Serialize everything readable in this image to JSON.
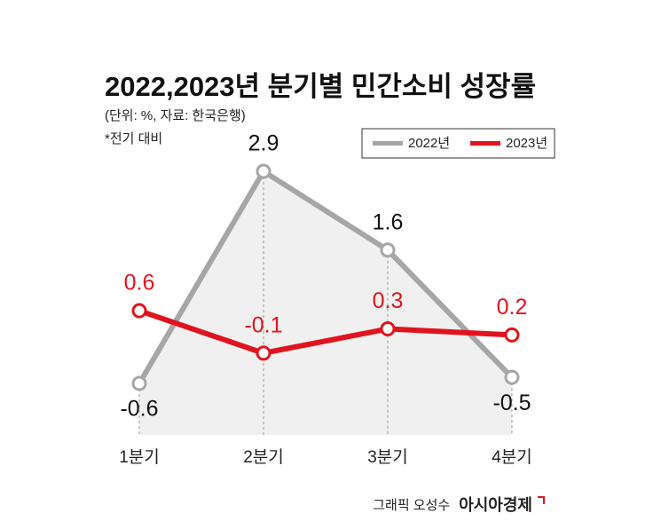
{
  "chart_data": {
    "type": "line",
    "title": "2022,2023년 분기별 민간소비 성장률",
    "subtitle": "(단위: %, 자료: 한국은행)",
    "note": "*전기 대비",
    "categories": [
      "1분기",
      "2분기",
      "3분기",
      "4분기"
    ],
    "series": [
      {
        "name": "2022년",
        "color": "#a6a6a6",
        "values": [
          -0.6,
          2.9,
          1.6,
          -0.5
        ]
      },
      {
        "name": "2023년",
        "color": "#e0141e",
        "values": [
          0.6,
          -0.1,
          0.3,
          0.2
        ]
      }
    ],
    "credit": "그래픽 오성수",
    "brand": "아시아경제"
  }
}
